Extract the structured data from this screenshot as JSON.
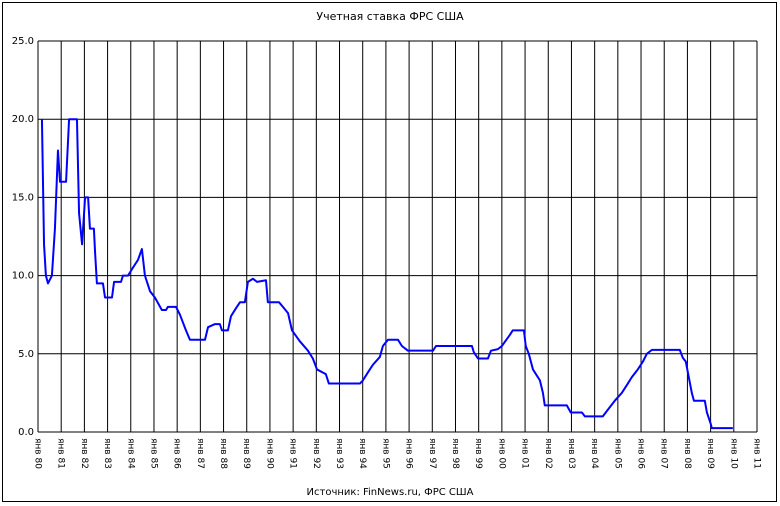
{
  "chart_data": {
    "type": "line",
    "title": "Учетная ставка ФРС США",
    "source": "Источник: FinNews.ru, ФРС США",
    "xlim": [
      1980,
      2011
    ],
    "xticks": [
      {
        "value": 1980,
        "label": "янв 80"
      },
      {
        "value": 1981,
        "label": "янв 81"
      },
      {
        "value": 1982,
        "label": "янв 82"
      },
      {
        "value": 1983,
        "label": "янв 83"
      },
      {
        "value": 1984,
        "label": "янв 84"
      },
      {
        "value": 1985,
        "label": "янв 85"
      },
      {
        "value": 1986,
        "label": "янв 86"
      },
      {
        "value": 1987,
        "label": "янв 87"
      },
      {
        "value": 1988,
        "label": "янв 88"
      },
      {
        "value": 1989,
        "label": "янв 89"
      },
      {
        "value": 1990,
        "label": "янв 90"
      },
      {
        "value": 1991,
        "label": "янв 91"
      },
      {
        "value": 1992,
        "label": "янв 92"
      },
      {
        "value": 1993,
        "label": "янв 93"
      },
      {
        "value": 1994,
        "label": "янв 94"
      },
      {
        "value": 1995,
        "label": "янв 95"
      },
      {
        "value": 1996,
        "label": "янв 96"
      },
      {
        "value": 1997,
        "label": "янв 97"
      },
      {
        "value": 1998,
        "label": "янв 98"
      },
      {
        "value": 1999,
        "label": "янв 99"
      },
      {
        "value": 2000,
        "label": "янв 00"
      },
      {
        "value": 2001,
        "label": "янв 01"
      },
      {
        "value": 2002,
        "label": "янв 02"
      },
      {
        "value": 2003,
        "label": "янв 03"
      },
      {
        "value": 2004,
        "label": "янв 04"
      },
      {
        "value": 2005,
        "label": "янв 05"
      },
      {
        "value": 2006,
        "label": "янв 06"
      },
      {
        "value": 2007,
        "label": "янв 07"
      },
      {
        "value": 2008,
        "label": "янв 08"
      },
      {
        "value": 2009,
        "label": "янв 09"
      },
      {
        "value": 2010,
        "label": "янв 10"
      },
      {
        "value": 2011,
        "label": "янв 11"
      }
    ],
    "ylim": [
      0,
      25
    ],
    "yticks": [
      {
        "value": 0,
        "label": "0.0"
      },
      {
        "value": 5,
        "label": "5.0"
      },
      {
        "value": 10,
        "label": "10.0"
      },
      {
        "value": 15,
        "label": "15.0"
      },
      {
        "value": 20,
        "label": "20.0"
      },
      {
        "value": 25,
        "label": "25.0"
      }
    ],
    "grid": true,
    "series": [
      {
        "color": "#0000ff",
        "x": [
          1980.17,
          1980.26,
          1980.34,
          1980.43,
          1980.6,
          1980.73,
          1980.86,
          1980.95,
          1981.21,
          1981.34,
          1981.68,
          1981.77,
          1981.9,
          1982.03,
          1982.16,
          1982.24,
          1982.41,
          1982.46,
          1982.54,
          1982.8,
          1982.89,
          1983.19,
          1983.28,
          1983.58,
          1983.66,
          1983.88,
          1984.09,
          1984.31,
          1984.48,
          1984.61,
          1984.83,
          1985.04,
          1985.34,
          1985.52,
          1985.6,
          1985.95,
          1986.12,
          1986.38,
          1986.55,
          1987.2,
          1987.33,
          1987.63,
          1987.84,
          1987.93,
          1988.19,
          1988.32,
          1988.53,
          1988.71,
          1988.92,
          1989.05,
          1989.27,
          1989.44,
          1989.83,
          1989.91,
          1990.39,
          1990.56,
          1990.78,
          1990.95,
          1991.29,
          1991.64,
          1991.85,
          1992.03,
          1992.41,
          1992.54,
          1993.88,
          1994.01,
          1994.22,
          1994.44,
          1994.74,
          1994.87,
          1995.09,
          1995.52,
          1995.69,
          1995.95,
          1997.03,
          1997.16,
          1998.71,
          1998.79,
          1998.97,
          1999.4,
          1999.53,
          1999.83,
          2000.0,
          2000.34,
          2000.47,
          2000.95,
          2001.03,
          2001.16,
          2001.34,
          2001.64,
          2001.77,
          2001.85,
          2002.8,
          2002.97,
          2003.45,
          2003.58,
          2004.35,
          2004.61,
          2004.87,
          2005.17,
          2005.39,
          2005.6,
          2005.86,
          2006.08,
          2006.25,
          2006.47,
          2007.67,
          2007.8,
          2007.93,
          2008.06,
          2008.19,
          2008.28,
          2008.75,
          2008.84,
          2009.01,
          2009.05,
          2009.96
        ],
        "values": [
          20,
          12,
          10,
          9.5,
          10,
          13,
          18,
          16,
          16,
          20,
          20,
          14,
          12,
          15,
          15,
          13,
          13,
          11.5,
          9.5,
          9.5,
          8.6,
          8.6,
          9.6,
          9.6,
          10,
          10,
          10.5,
          11,
          11.7,
          10,
          9,
          8.6,
          7.8,
          7.8,
          8,
          8,
          7.5,
          6.5,
          5.9,
          5.9,
          6.7,
          6.9,
          6.9,
          6.5,
          6.5,
          7.4,
          7.9,
          8.3,
          8.3,
          9.6,
          9.8,
          9.6,
          9.7,
          8.3,
          8.3,
          8,
          7.6,
          6.5,
          5.8,
          5.2,
          4.7,
          4,
          3.7,
          3.1,
          3.1,
          3.3,
          3.8,
          4.3,
          4.8,
          5.5,
          5.9,
          5.9,
          5.5,
          5.2,
          5.2,
          5.5,
          5.5,
          5.1,
          4.7,
          4.7,
          5.2,
          5.3,
          5.5,
          6.2,
          6.5,
          6.5,
          5.5,
          5,
          4,
          3.3,
          2.5,
          1.7,
          1.7,
          1.25,
          1.25,
          1,
          1,
          1.5,
          2,
          2.5,
          3,
          3.5,
          4,
          4.5,
          5,
          5.25,
          5.25,
          4.75,
          4.5,
          3.5,
          2.5,
          2,
          2,
          1.25,
          0.5,
          0.25,
          0.25
        ]
      }
    ]
  }
}
